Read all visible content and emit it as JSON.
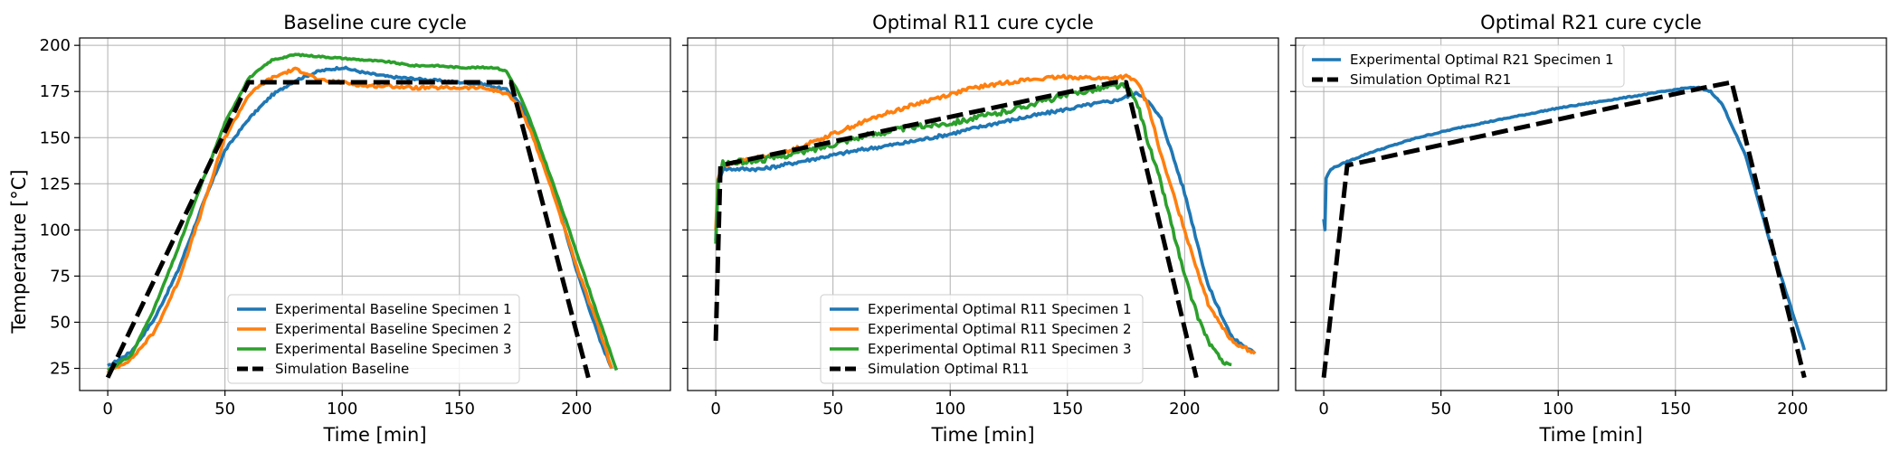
{
  "figure": {
    "ylabel": "Temperature [°C]"
  },
  "colors": {
    "blue": "#1f77b4",
    "orange": "#ff7f0e",
    "green": "#2ca02c",
    "black": "#000000",
    "grid": "#b0b0b0"
  },
  "chart_data": [
    {
      "type": "line",
      "title": "Baseline cure cycle",
      "xlabel": "Time [min]",
      "ylabel": "Temperature [°C]",
      "xlim": [
        -12,
        240
      ],
      "ylim": [
        13,
        204
      ],
      "xticks": [
        0,
        50,
        100,
        150,
        200
      ],
      "yticks": [
        25,
        50,
        75,
        100,
        125,
        150,
        175,
        200
      ],
      "legend_position": "lower-center",
      "series": [
        {
          "name": "Experimental Baseline Specimen 1",
          "color": "#1f77b4",
          "style": "solid",
          "noise": 0.6,
          "points": [
            [
              0,
              26
            ],
            [
              10,
              34
            ],
            [
              20,
              52
            ],
            [
              30,
              78
            ],
            [
              40,
              112
            ],
            [
              50,
              143
            ],
            [
              60,
              160
            ],
            [
              70,
              173
            ],
            [
              80,
              181
            ],
            [
              90,
              186
            ],
            [
              100,
              188
            ],
            [
              110,
              185
            ],
            [
              120,
              183
            ],
            [
              130,
              182
            ],
            [
              140,
              181
            ],
            [
              150,
              180
            ],
            [
              160,
              179
            ],
            [
              170,
              176
            ],
            [
              175,
              170
            ],
            [
              180,
              158
            ],
            [
              190,
              122
            ],
            [
              200,
              78
            ],
            [
              210,
              40
            ],
            [
              215,
              25
            ]
          ]
        },
        {
          "name": "Experimental Baseline Specimen 2",
          "color": "#ff7f0e",
          "style": "solid",
          "noise": 0.8,
          "points": [
            [
              0,
              23
            ],
            [
              10,
              30
            ],
            [
              20,
              45
            ],
            [
              30,
              72
            ],
            [
              40,
              110
            ],
            [
              50,
              150
            ],
            [
              60,
              173
            ],
            [
              68,
              181
            ],
            [
              75,
              185
            ],
            [
              80,
              187
            ],
            [
              85,
              185
            ],
            [
              90,
              181
            ],
            [
              100,
              180
            ],
            [
              110,
              178
            ],
            [
              120,
              178
            ],
            [
              130,
              177
            ],
            [
              140,
              177
            ],
            [
              150,
              177
            ],
            [
              160,
              177
            ],
            [
              170,
              174
            ],
            [
              175,
              168
            ],
            [
              180,
              155
            ],
            [
              190,
              120
            ],
            [
              200,
              80
            ],
            [
              210,
              45
            ],
            [
              215,
              25
            ]
          ]
        },
        {
          "name": "Experimental Baseline Specimen 3",
          "color": "#2ca02c",
          "style": "solid",
          "noise": 0.4,
          "points": [
            [
              0,
              24
            ],
            [
              10,
              32
            ],
            [
              20,
              58
            ],
            [
              30,
              90
            ],
            [
              40,
              125
            ],
            [
              50,
              158
            ],
            [
              60,
              182
            ],
            [
              70,
              192
            ],
            [
              80,
              195
            ],
            [
              90,
              194
            ],
            [
              100,
              193
            ],
            [
              110,
              192
            ],
            [
              120,
              191
            ],
            [
              130,
              189
            ],
            [
              140,
              189
            ],
            [
              150,
              188
            ],
            [
              160,
              188
            ],
            [
              165,
              188
            ],
            [
              170,
              186
            ],
            [
              175,
              175
            ],
            [
              180,
              160
            ],
            [
              190,
              125
            ],
            [
              200,
              88
            ],
            [
              210,
              50
            ],
            [
              217,
              24
            ]
          ]
        },
        {
          "name": "Simulation Baseline",
          "color": "#000000",
          "style": "dashed",
          "noise": 0,
          "points": [
            [
              0,
              20
            ],
            [
              60,
              180
            ],
            [
              172,
              180
            ],
            [
              205,
              20
            ]
          ]
        }
      ]
    },
    {
      "type": "line",
      "title": "Optimal R11 cure cycle",
      "xlabel": "Time [min]",
      "ylabel": "",
      "xlim": [
        -12,
        240
      ],
      "ylim": [
        13,
        204
      ],
      "xticks": [
        0,
        50,
        100,
        150,
        200
      ],
      "yticks": [
        25,
        50,
        75,
        100,
        125,
        150,
        175,
        200
      ],
      "legend_position": "lower-center",
      "series": [
        {
          "name": "Experimental Optimal R11 Specimen 1",
          "color": "#1f77b4",
          "style": "solid",
          "noise": 0.9,
          "points": [
            [
              0,
              95
            ],
            [
              1,
              125
            ],
            [
              3,
              133
            ],
            [
              10,
              133
            ],
            [
              20,
              133
            ],
            [
              40,
              138
            ],
            [
              60,
              143
            ],
            [
              80,
              147
            ],
            [
              100,
              152
            ],
            [
              120,
              158
            ],
            [
              140,
              163
            ],
            [
              160,
              168
            ],
            [
              170,
              170
            ],
            [
              175,
              172
            ],
            [
              180,
              174
            ],
            [
              183,
              172
            ],
            [
              190,
              160
            ],
            [
              200,
              120
            ],
            [
              210,
              70
            ],
            [
              220,
              42
            ],
            [
              230,
              33
            ]
          ]
        },
        {
          "name": "Experimental Optimal R11 Specimen 2",
          "color": "#ff7f0e",
          "style": "solid",
          "noise": 1.0,
          "points": [
            [
              0,
              100
            ],
            [
              1,
              128
            ],
            [
              3,
              135
            ],
            [
              10,
              137
            ],
            [
              30,
              142
            ],
            [
              50,
              152
            ],
            [
              70,
              162
            ],
            [
              90,
              170
            ],
            [
              110,
              177
            ],
            [
              130,
              181
            ],
            [
              150,
              183
            ],
            [
              165,
              182
            ],
            [
              175,
              183
            ],
            [
              180,
              180
            ],
            [
              185,
              165
            ],
            [
              190,
              140
            ],
            [
              200,
              100
            ],
            [
              210,
              60
            ],
            [
              220,
              40
            ],
            [
              230,
              33
            ]
          ]
        },
        {
          "name": "Experimental Optimal R11 Specimen 3",
          "color": "#2ca02c",
          "style": "solid",
          "noise": 1.5,
          "points": [
            [
              0,
              92
            ],
            [
              1,
              126
            ],
            [
              3,
              136
            ],
            [
              20,
              138
            ],
            [
              40,
              143
            ],
            [
              60,
              150
            ],
            [
              80,
              155
            ],
            [
              100,
              158
            ],
            [
              120,
              163
            ],
            [
              140,
              170
            ],
            [
              160,
              176
            ],
            [
              170,
              178
            ],
            [
              175,
              178
            ],
            [
              180,
              168
            ],
            [
              185,
              145
            ],
            [
              190,
              125
            ],
            [
              195,
              100
            ],
            [
              200,
              75
            ],
            [
              205,
              55
            ],
            [
              210,
              40
            ],
            [
              215,
              30
            ],
            [
              220,
              27
            ]
          ]
        },
        {
          "name": "Simulation Optimal R11",
          "color": "#000000",
          "style": "dashed",
          "noise": 0,
          "points": [
            [
              0,
              40
            ],
            [
              2,
              135
            ],
            [
              170,
              180
            ],
            [
              175,
              180
            ],
            [
              205,
              20
            ]
          ]
        }
      ]
    },
    {
      "type": "line",
      "title": "Optimal R21 cure cycle",
      "xlabel": "Time [min]",
      "ylabel": "",
      "xlim": [
        -12,
        240
      ],
      "ylim": [
        13,
        204
      ],
      "xticks": [
        0,
        50,
        100,
        150,
        200
      ],
      "yticks": [
        25,
        50,
        75,
        100,
        125,
        150,
        175,
        200
      ],
      "legend_position": "upper-left",
      "series": [
        {
          "name": "Experimental Optimal R21 Specimen 1",
          "color": "#1f77b4",
          "style": "solid",
          "noise": 0.3,
          "points": [
            [
              0,
              106
            ],
            [
              0.5,
              100
            ],
            [
              1,
              128
            ],
            [
              3,
              133
            ],
            [
              10,
              137
            ],
            [
              20,
              142
            ],
            [
              40,
              150
            ],
            [
              60,
              156
            ],
            [
              80,
              161
            ],
            [
              100,
              166
            ],
            [
              120,
              170
            ],
            [
              140,
              174
            ],
            [
              155,
              177
            ],
            [
              160,
              177
            ],
            [
              165,
              175
            ],
            [
              170,
              168
            ],
            [
              180,
              140
            ],
            [
              190,
              95
            ],
            [
              200,
              55
            ],
            [
              205,
              35
            ]
          ]
        },
        {
          "name": "Simulation Optimal R21",
          "color": "#000000",
          "style": "dashed",
          "noise": 0,
          "points": [
            [
              0,
              20
            ],
            [
              10,
              135
            ],
            [
              162,
              177
            ],
            [
              174,
              180
            ],
            [
              205,
              20
            ]
          ]
        }
      ]
    }
  ]
}
